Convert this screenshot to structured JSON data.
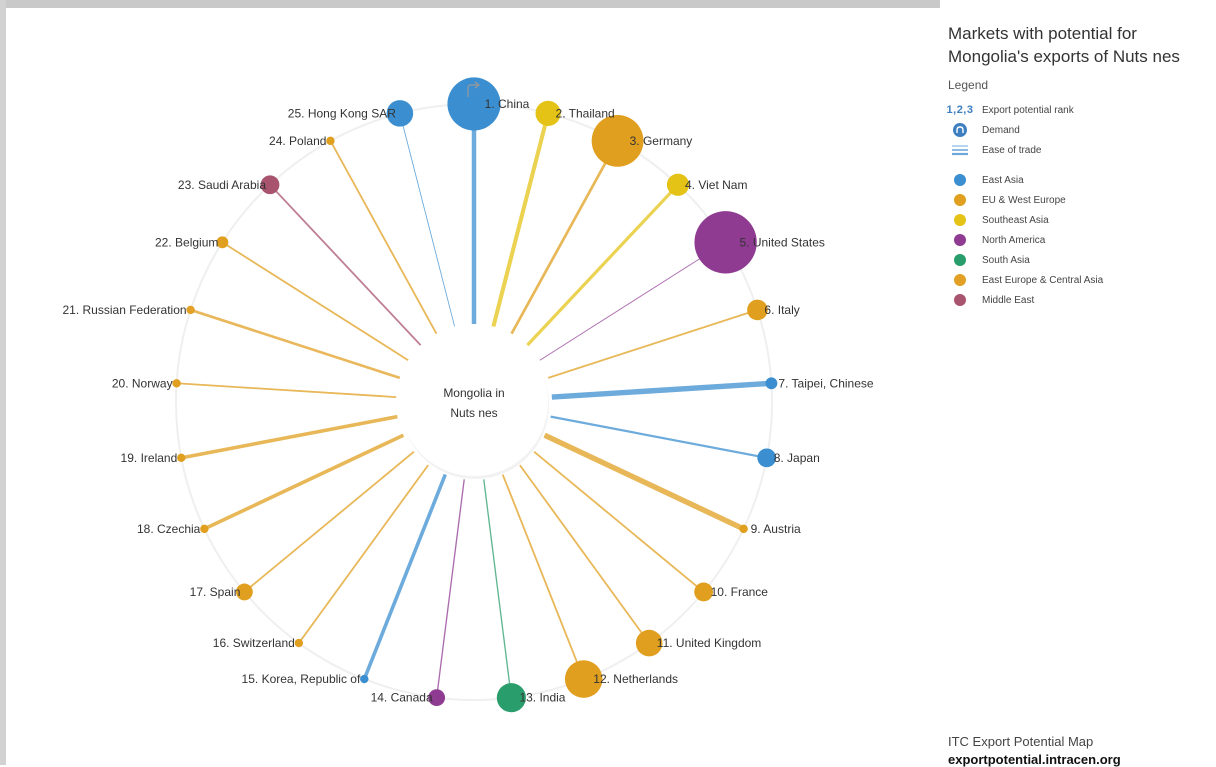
{
  "side_panel": {
    "title": "Markets with potential for Mongolia's exports of Nuts nes",
    "legend_heading": "Legend",
    "key_items": [
      {
        "glyph": "1,2,3",
        "label": "Export potential rank",
        "icon": "rank-numbers-icon"
      },
      {
        "glyph": "",
        "label": "Demand",
        "icon": "demand-bubble-icon"
      },
      {
        "glyph": "",
        "label": "Ease of trade",
        "icon": "ease-of-trade-lines-icon"
      }
    ],
    "regions": [
      {
        "label": "East Asia",
        "color": "#3b8fd0"
      },
      {
        "label": "EU & West Europe",
        "color": "#e09f1f"
      },
      {
        "label": "Southeast Asia",
        "color": "#e4c316"
      },
      {
        "label": "North America",
        "color": "#8e3b91"
      },
      {
        "label": "South Asia",
        "color": "#2a9d6c"
      },
      {
        "label": "East Europe & Central Asia",
        "color": "#e2a026"
      },
      {
        "label": "Middle East",
        "color": "#a8546e"
      }
    ]
  },
  "footer": {
    "line1": "ITC Export Potential Map",
    "line2": "exportpotential.intracen.org"
  },
  "chart_data": {
    "type": "radial-bubble",
    "center_label": [
      "Mongolia in",
      "Nuts nes"
    ],
    "series": [
      {
        "rank": 1,
        "label": "1. China",
        "region": "East Asia",
        "demand": 40,
        "ease": 5
      },
      {
        "rank": 2,
        "label": "2. Thailand",
        "region": "Southeast Asia",
        "demand": 9,
        "ease": 4.5
      },
      {
        "rank": 3,
        "label": "3. Germany",
        "region": "EU & West Europe",
        "demand": 38,
        "ease": 3
      },
      {
        "rank": 4,
        "label": "4. Viet Nam",
        "region": "Southeast Asia",
        "demand": 7,
        "ease": 3.5
      },
      {
        "rank": 5,
        "label": "5. United States",
        "region": "North America",
        "demand": 55,
        "ease": 1
      },
      {
        "rank": 6,
        "label": "6. Italy",
        "region": "EU & West Europe",
        "demand": 6,
        "ease": 2
      },
      {
        "rank": 7,
        "label": "7. Taipei, Chinese",
        "region": "East Asia",
        "demand": 2,
        "ease": 6
      },
      {
        "rank": 8,
        "label": "8. Japan",
        "region": "East Asia",
        "demand": 5,
        "ease": 2.5
      },
      {
        "rank": 9,
        "label": "9. Austria",
        "region": "EU & West Europe",
        "demand": 1,
        "ease": 6
      },
      {
        "rank": 10,
        "label": "10. France",
        "region": "EU & West Europe",
        "demand": 5,
        "ease": 2
      },
      {
        "rank": 11,
        "label": "11. United Kingdom",
        "region": "EU & West Europe",
        "demand": 10,
        "ease": 2
      },
      {
        "rank": 12,
        "label": "12. Netherlands",
        "region": "EU & West Europe",
        "demand": 20,
        "ease": 2
      },
      {
        "rank": 13,
        "label": "13. India",
        "region": "South Asia",
        "demand": 12,
        "ease": 1.5
      },
      {
        "rank": 14,
        "label": "14. Canada",
        "region": "North America",
        "demand": 4,
        "ease": 1.5
      },
      {
        "rank": 15,
        "label": "15. Korea, Republic of",
        "region": "East Asia",
        "demand": 1,
        "ease": 4
      },
      {
        "rank": 16,
        "label": "16. Switzerland",
        "region": "EU & West Europe",
        "demand": 1,
        "ease": 2
      },
      {
        "rank": 17,
        "label": "17. Spain",
        "region": "EU & West Europe",
        "demand": 4,
        "ease": 2
      },
      {
        "rank": 18,
        "label": "18. Czechia",
        "region": "EU & West Europe",
        "demand": 1,
        "ease": 4
      },
      {
        "rank": 19,
        "label": "19. Ireland",
        "region": "EU & West Europe",
        "demand": 1,
        "ease": 4
      },
      {
        "rank": 20,
        "label": "20. Norway",
        "region": "EU & West Europe",
        "demand": 1,
        "ease": 2
      },
      {
        "rank": 21,
        "label": "21. Russian Federation",
        "region": "East Europe & Central Asia",
        "demand": 1,
        "ease": 3
      },
      {
        "rank": 22,
        "label": "22. Belgium",
        "region": "EU & West Europe",
        "demand": 2,
        "ease": 2
      },
      {
        "rank": 23,
        "label": "23. Saudi Arabia",
        "region": "Middle East",
        "demand": 5,
        "ease": 2
      },
      {
        "rank": 24,
        "label": "24. Poland",
        "region": "EU & West Europe",
        "demand": 1,
        "ease": 2
      },
      {
        "rank": 25,
        "label": "25. Hong Kong SAR",
        "region": "East Asia",
        "demand": 10,
        "ease": 1
      }
    ]
  }
}
